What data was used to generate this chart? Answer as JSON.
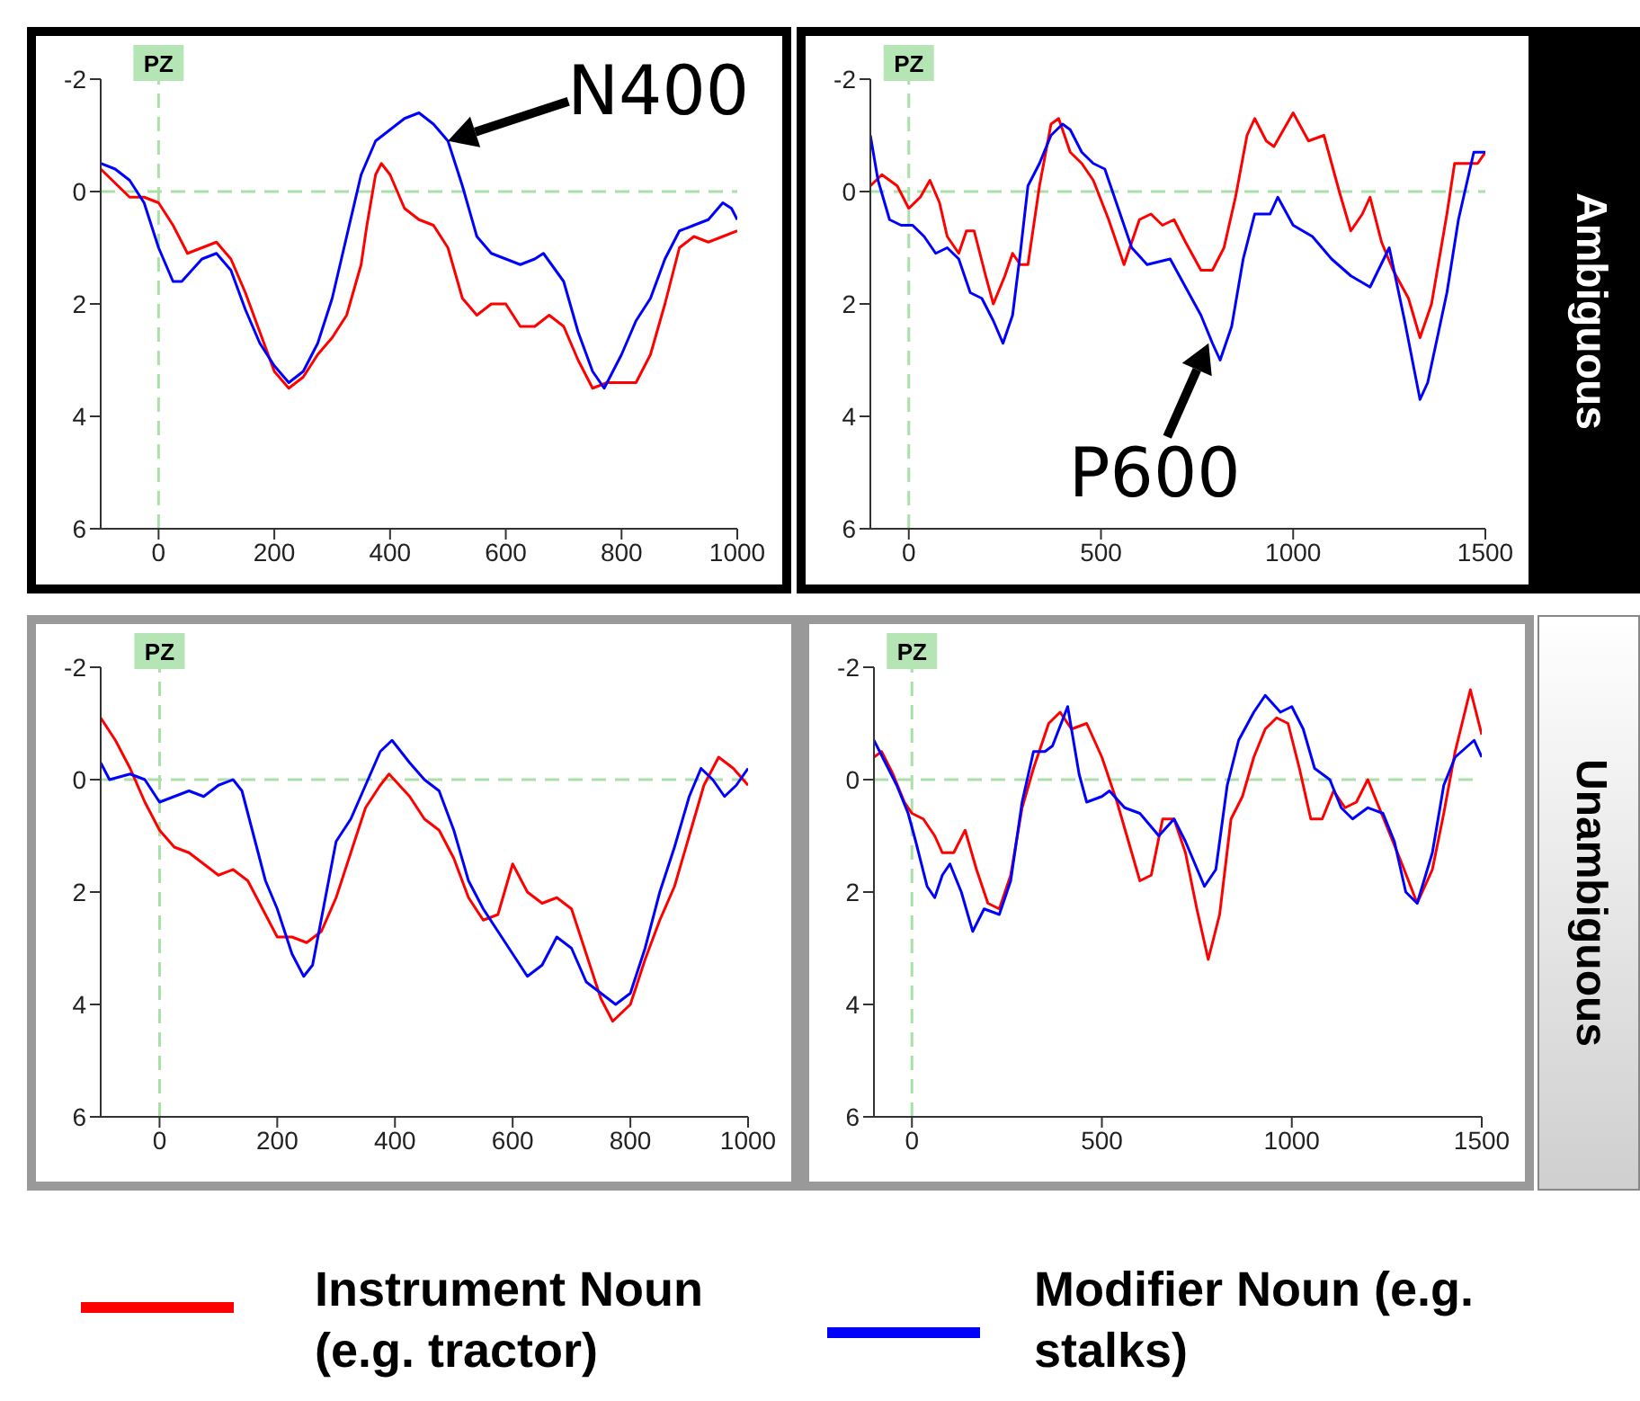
{
  "chart_data": [
    {
      "type": "line",
      "xlim": [
        -100,
        1000
      ],
      "xticks": [
        0,
        200,
        400,
        600,
        800,
        1000
      ],
      "ylim": [
        6,
        -2
      ],
      "yticks": [
        -2,
        0,
        2,
        4,
        6
      ],
      "marker": "none",
      "legend": false,
      "ref_lines": [
        {
          "axis": "x",
          "value": 0,
          "label": "PZ",
          "color": "#a8e0a8",
          "line_style": "dashed"
        },
        {
          "axis": "y",
          "value": 0,
          "color": "#a8e0a8",
          "line_style": "dashed"
        }
      ],
      "annotations": [
        {
          "text": "N400",
          "x": 500,
          "y": -0.9
        }
      ],
      "series": [
        {
          "color": "#ff0000",
          "x": [
            -100,
            -50,
            -25,
            0,
            25,
            50,
            75,
            100,
            125,
            150,
            175,
            200,
            225,
            250,
            275,
            300,
            325,
            350,
            360,
            375,
            385,
            400,
            425,
            450,
            475,
            500,
            525,
            550,
            575,
            600,
            625,
            650,
            675,
            700,
            725,
            750,
            775,
            800,
            825,
            850,
            875,
            900,
            925,
            950,
            975,
            1000
          ],
          "values": [
            -0.4,
            0.1,
            0.1,
            0.2,
            0.6,
            1.1,
            1.0,
            0.9,
            1.2,
            1.8,
            2.5,
            3.2,
            3.5,
            3.3,
            2.9,
            2.6,
            2.2,
            1.3,
            0.6,
            -0.3,
            -0.5,
            -0.3,
            0.3,
            0.5,
            0.6,
            1.0,
            1.9,
            2.2,
            2.0,
            2.0,
            2.4,
            2.4,
            2.2,
            2.4,
            3.0,
            3.5,
            3.4,
            3.4,
            3.4,
            2.9,
            2.0,
            1.0,
            0.8,
            0.9,
            0.8,
            0.7
          ]
        },
        {
          "color": "#0000ff",
          "x": [
            -100,
            -75,
            -50,
            -25,
            0,
            25,
            40,
            75,
            100,
            125,
            150,
            175,
            200,
            225,
            250,
            275,
            300,
            325,
            350,
            375,
            400,
            425,
            450,
            475,
            500,
            525,
            550,
            575,
            600,
            625,
            650,
            665,
            700,
            725,
            750,
            770,
            800,
            825,
            850,
            875,
            900,
            925,
            950,
            975,
            990,
            1000
          ],
          "values": [
            -0.5,
            -0.4,
            -0.2,
            0.2,
            1.0,
            1.6,
            1.6,
            1.2,
            1.1,
            1.4,
            2.1,
            2.7,
            3.1,
            3.4,
            3.2,
            2.7,
            1.9,
            0.8,
            -0.3,
            -0.9,
            -1.1,
            -1.3,
            -1.4,
            -1.2,
            -0.9,
            -0.1,
            0.8,
            1.1,
            1.2,
            1.3,
            1.2,
            1.1,
            1.6,
            2.5,
            3.2,
            3.5,
            2.9,
            2.3,
            1.9,
            1.2,
            0.7,
            0.6,
            0.5,
            0.2,
            0.3,
            0.5
          ]
        }
      ]
    },
    {
      "type": "line",
      "xlim": [
        -100,
        1500
      ],
      "xticks": [
        0,
        500,
        1000,
        1500
      ],
      "ylim": [
        6,
        -2
      ],
      "yticks": [
        -2,
        0,
        2,
        4,
        6
      ],
      "marker": "none",
      "legend": false,
      "ref_lines": [
        {
          "axis": "x",
          "value": 0,
          "label": "PZ",
          "color": "#a8e0a8",
          "line_style": "dashed"
        },
        {
          "axis": "y",
          "value": 0,
          "color": "#a8e0a8",
          "line_style": "dashed"
        }
      ],
      "annotations": [
        {
          "text": "P600",
          "x": 780,
          "y": 2.7
        },
        "Ambiguous"
      ],
      "series": [
        {
          "color": "#ff0000",
          "x": [
            -100,
            -70,
            -30,
            0,
            30,
            55,
            80,
            100,
            130,
            150,
            170,
            200,
            220,
            250,
            270,
            290,
            310,
            340,
            370,
            390,
            420,
            450,
            480,
            520,
            560,
            600,
            630,
            660,
            690,
            720,
            760,
            790,
            820,
            850,
            880,
            900,
            930,
            950,
            1000,
            1040,
            1080,
            1120,
            1150,
            1180,
            1200,
            1230,
            1260,
            1300,
            1330,
            1360,
            1400,
            1420,
            1460,
            1480,
            1500
          ],
          "values": [
            -0.1,
            -0.3,
            -0.1,
            0.3,
            0.1,
            -0.2,
            0.2,
            0.8,
            1.1,
            0.7,
            0.7,
            1.5,
            2.0,
            1.5,
            1.1,
            1.3,
            1.3,
            -0.1,
            -1.2,
            -1.3,
            -0.7,
            -0.5,
            -0.2,
            0.5,
            1.3,
            0.5,
            0.4,
            0.6,
            0.5,
            0.9,
            1.4,
            1.4,
            1.0,
            0.1,
            -1.0,
            -1.3,
            -0.9,
            -0.8,
            -1.4,
            -0.9,
            -1.0,
            0.0,
            0.7,
            0.4,
            0.1,
            0.9,
            1.4,
            1.9,
            2.6,
            2.0,
            0.4,
            -0.5,
            -0.5,
            -0.5,
            -0.7
          ]
        },
        {
          "color": "#0000ff",
          "x": [
            -100,
            -80,
            -50,
            -20,
            10,
            40,
            70,
            100,
            130,
            160,
            190,
            220,
            245,
            270,
            290,
            310,
            340,
            370,
            400,
            420,
            450,
            480,
            510,
            550,
            580,
            620,
            680,
            720,
            760,
            790,
            810,
            840,
            870,
            900,
            940,
            960,
            1000,
            1050,
            1100,
            1150,
            1200,
            1250,
            1290,
            1330,
            1350,
            1400,
            1430,
            1470,
            1500
          ],
          "values": [
            -1.0,
            -0.2,
            0.5,
            0.6,
            0.6,
            0.8,
            1.1,
            1.0,
            1.2,
            1.8,
            1.9,
            2.3,
            2.7,
            2.2,
            1.1,
            -0.1,
            -0.5,
            -1.0,
            -1.2,
            -1.1,
            -0.7,
            -0.5,
            -0.4,
            0.4,
            1.0,
            1.3,
            1.2,
            1.7,
            2.2,
            2.7,
            3.0,
            2.4,
            1.2,
            0.4,
            0.4,
            0.1,
            0.6,
            0.8,
            1.2,
            1.5,
            1.7,
            1.0,
            2.3,
            3.7,
            3.4,
            1.8,
            0.5,
            -0.7,
            -0.7
          ]
        }
      ]
    },
    {
      "type": "line",
      "xlim": [
        -100,
        1000
      ],
      "xticks": [
        0,
        200,
        400,
        600,
        800,
        1000
      ],
      "ylim": [
        6,
        -2
      ],
      "yticks": [
        -2,
        0,
        2,
        4,
        6
      ],
      "marker": "none",
      "legend": false,
      "ref_lines": [
        {
          "axis": "x",
          "value": 0,
          "label": "PZ",
          "color": "#a8e0a8",
          "line_style": "dashed"
        },
        {
          "axis": "y",
          "value": 0,
          "color": "#a8e0a8",
          "line_style": "dashed"
        }
      ],
      "series": [
        {
          "color": "#ff0000",
          "x": [
            -100,
            -75,
            -50,
            -25,
            0,
            25,
            50,
            75,
            100,
            125,
            150,
            175,
            200,
            225,
            250,
            275,
            300,
            325,
            350,
            375,
            390,
            425,
            450,
            475,
            500,
            525,
            550,
            575,
            600,
            625,
            650,
            675,
            700,
            725,
            750,
            770,
            800,
            825,
            850,
            875,
            900,
            925,
            950,
            975,
            1000
          ],
          "values": [
            -1.1,
            -0.7,
            -0.2,
            0.4,
            0.9,
            1.2,
            1.3,
            1.5,
            1.7,
            1.6,
            1.8,
            2.3,
            2.8,
            2.8,
            2.9,
            2.7,
            2.1,
            1.3,
            0.5,
            0.1,
            -0.1,
            0.3,
            0.7,
            0.9,
            1.4,
            2.1,
            2.5,
            2.4,
            1.5,
            2.0,
            2.2,
            2.1,
            2.3,
            3.1,
            3.9,
            4.3,
            4.0,
            3.2,
            2.5,
            1.9,
            1.0,
            0.1,
            -0.4,
            -0.2,
            0.1
          ]
        },
        {
          "color": "#0000ff",
          "x": [
            -100,
            -85,
            -50,
            -25,
            0,
            25,
            50,
            75,
            100,
            125,
            140,
            160,
            180,
            200,
            225,
            245,
            260,
            280,
            300,
            325,
            350,
            375,
            395,
            425,
            450,
            475,
            500,
            525,
            550,
            575,
            600,
            625,
            650,
            675,
            700,
            725,
            750,
            775,
            800,
            825,
            850,
            875,
            900,
            920,
            940,
            960,
            980,
            1000
          ],
          "values": [
            -0.3,
            0.0,
            -0.1,
            0.0,
            0.4,
            0.3,
            0.2,
            0.3,
            0.1,
            0.0,
            0.2,
            1.0,
            1.8,
            2.3,
            3.1,
            3.5,
            3.3,
            2.2,
            1.1,
            0.7,
            0.1,
            -0.5,
            -0.7,
            -0.3,
            0.0,
            0.2,
            0.9,
            1.8,
            2.3,
            2.7,
            3.1,
            3.5,
            3.3,
            2.8,
            3.0,
            3.6,
            3.8,
            4.0,
            3.8,
            3.0,
            2.0,
            1.2,
            0.3,
            -0.2,
            0.0,
            0.3,
            0.1,
            -0.2
          ]
        }
      ]
    },
    {
      "type": "line",
      "xlim": [
        -100,
        1500
      ],
      "xticks": [
        0,
        500,
        1000,
        1500
      ],
      "ylim": [
        6,
        -2
      ],
      "yticks": [
        -2,
        0,
        2,
        4,
        6
      ],
      "marker": "none",
      "legend": "bottom",
      "ref_lines": [
        {
          "axis": "x",
          "value": 0,
          "label": "PZ",
          "color": "#a8e0a8",
          "line_style": "dashed"
        },
        {
          "axis": "y",
          "value": 0,
          "color": "#a8e0a8",
          "line_style": "dashed"
        }
      ],
      "annotations": [
        "Unambiguous"
      ],
      "series": [
        {
          "name": "Instrument Noun (e.g. tractor)",
          "color": "#ff0000",
          "x": [
            -100,
            -80,
            -50,
            -20,
            0,
            30,
            60,
            80,
            110,
            140,
            170,
            200,
            230,
            260,
            290,
            320,
            360,
            390,
            420,
            460,
            500,
            540,
            570,
            600,
            630,
            660,
            690,
            720,
            750,
            780,
            810,
            840,
            870,
            900,
            930,
            960,
            990,
            1020,
            1050,
            1080,
            1110,
            1140,
            1170,
            1200,
            1230,
            1260,
            1290,
            1330,
            1370,
            1400,
            1430,
            1470,
            1500
          ],
          "values": [
            -0.4,
            -0.5,
            -0.1,
            0.4,
            0.6,
            0.7,
            1.0,
            1.3,
            1.3,
            0.9,
            1.6,
            2.2,
            2.3,
            1.7,
            0.5,
            -0.2,
            -1.0,
            -1.2,
            -0.9,
            -1.0,
            -0.4,
            0.4,
            1.1,
            1.8,
            1.7,
            0.7,
            0.7,
            1.3,
            2.3,
            3.2,
            2.4,
            0.7,
            0.3,
            -0.4,
            -0.9,
            -1.1,
            -1.0,
            -0.2,
            0.7,
            0.7,
            0.2,
            0.5,
            0.4,
            0.0,
            0.5,
            1.0,
            1.5,
            2.2,
            1.6,
            0.6,
            -0.5,
            -1.6,
            -0.8
          ]
        },
        {
          "name": "Modifier Noun (e.g. stalks)",
          "color": "#0000ff",
          "x": [
            -100,
            -70,
            -40,
            -10,
            10,
            40,
            60,
            80,
            100,
            130,
            160,
            190,
            230,
            260,
            290,
            320,
            350,
            370,
            410,
            440,
            460,
            500,
            520,
            560,
            600,
            650,
            690,
            720,
            770,
            800,
            830,
            860,
            900,
            930,
            970,
            1000,
            1030,
            1060,
            1100,
            1130,
            1160,
            1200,
            1240,
            1270,
            1300,
            1330,
            1370,
            1400,
            1430,
            1480,
            1500
          ],
          "values": [
            -0.7,
            -0.3,
            0.1,
            0.6,
            1.1,
            1.9,
            2.1,
            1.7,
            1.5,
            2.0,
            2.7,
            2.3,
            2.4,
            1.8,
            0.4,
            -0.5,
            -0.5,
            -0.6,
            -1.3,
            -0.1,
            0.4,
            0.3,
            0.2,
            0.5,
            0.6,
            1.0,
            0.7,
            1.1,
            1.9,
            1.6,
            0.1,
            -0.7,
            -1.2,
            -1.5,
            -1.2,
            -1.3,
            -0.9,
            -0.2,
            0.0,
            0.5,
            0.7,
            0.5,
            0.6,
            1.1,
            2.0,
            2.2,
            1.3,
            0.1,
            -0.4,
            -0.7,
            -0.4
          ]
        }
      ]
    }
  ]
}
